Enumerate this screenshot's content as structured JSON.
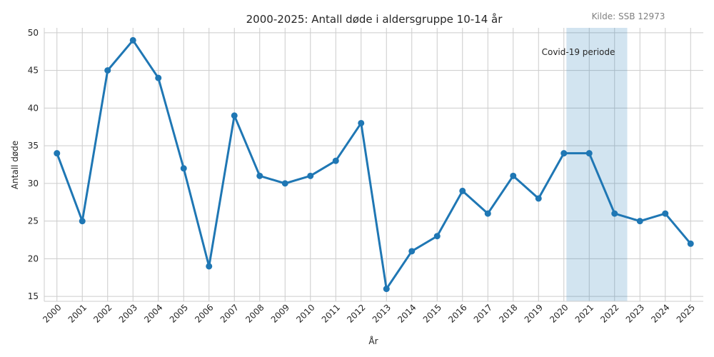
{
  "chart_data": {
    "type": "line",
    "title": "2000-2025: Antall døde i aldersgruppe 10-14 år",
    "xlabel": "År",
    "ylabel": "Antall døde",
    "source": "Kilde: SSB 12973",
    "ylim": [
      14.35,
      50.65
    ],
    "yticks": [
      15,
      20,
      25,
      30,
      35,
      40,
      45,
      50
    ],
    "grid": true,
    "categories": [
      "2000",
      "2001",
      "2002",
      "2003",
      "2004",
      "2005",
      "2006",
      "2007",
      "2008",
      "2009",
      "2010",
      "2011",
      "2012",
      "2013",
      "2014",
      "2015",
      "2016",
      "2017",
      "2018",
      "2019",
      "2020",
      "2021",
      "2022",
      "2023",
      "2024",
      "2025"
    ],
    "series": [
      {
        "values": [
          34,
          25,
          45,
          49,
          44,
          32,
          19,
          39,
          31,
          30,
          31,
          33,
          38,
          16,
          21,
          23,
          29,
          26,
          31,
          28,
          34,
          34,
          26,
          25,
          26,
          22
        ],
        "color": "#1f77b4"
      }
    ],
    "highlight": {
      "label": "Covid-19 periode",
      "from": "2020",
      "to": "2022",
      "color": "#1f77b4"
    }
  }
}
